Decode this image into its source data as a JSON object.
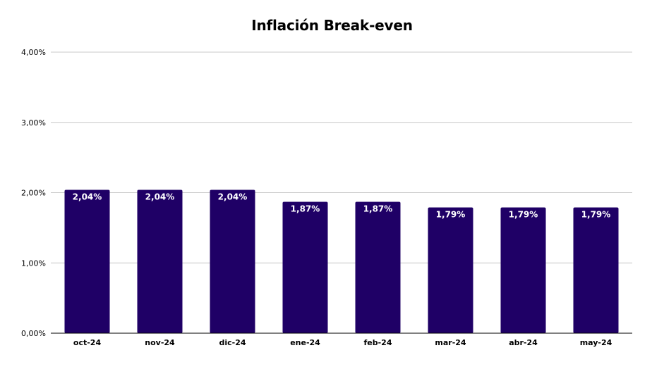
{
  "chart_data": {
    "type": "bar",
    "title": "Inflación Break-even",
    "xlabel": "",
    "ylabel": "",
    "categories": [
      "oct-24",
      "nov-24",
      "dic-24",
      "ene-24",
      "feb-24",
      "mar-24",
      "abr-24",
      "may-24"
    ],
    "values": [
      2.04,
      2.04,
      2.04,
      1.87,
      1.87,
      1.79,
      1.79,
      1.79
    ],
    "data_labels": [
      "2,04%",
      "2,04%",
      "2,04%",
      "1,87%",
      "1,87%",
      "1,79%",
      "1,79%",
      "1,79%"
    ],
    "ylim": [
      0,
      4
    ],
    "yticks": [
      0,
      1,
      2,
      3,
      4
    ],
    "ytick_labels": [
      "0,00%",
      "1,00%",
      "2,00%",
      "3,00%",
      "4,00%"
    ],
    "grid": true,
    "legend": "none",
    "bar_color": "#1f0066",
    "data_label_color": "#ffffff",
    "grid_color": "#c8c8c8",
    "axis_color": "#000000"
  }
}
